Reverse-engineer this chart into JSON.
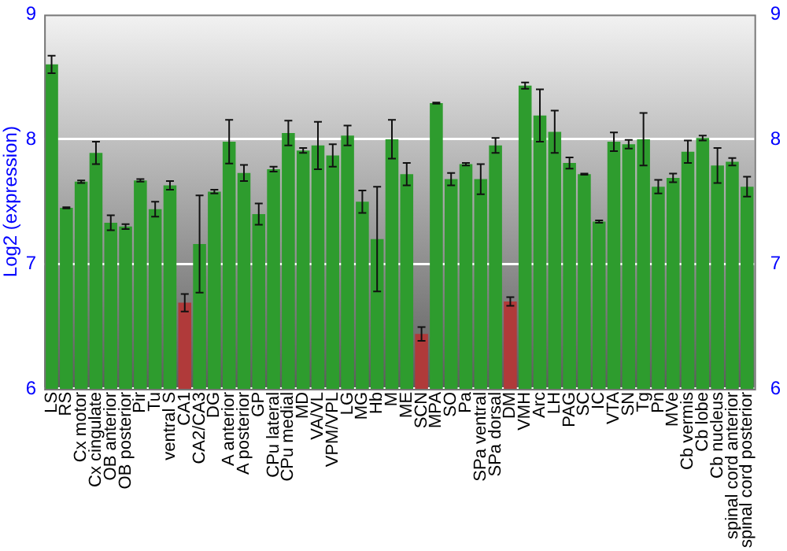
{
  "chart_data": {
    "type": "bar",
    "ylabel": "Log2 (expression)",
    "categories": [
      "LS",
      "RS",
      "Cx motor",
      "Cx cingulate",
      "OB anterior",
      "OB posterior",
      "Pir",
      "Tu",
      "ventral S",
      "CA1",
      "CA2/CA3",
      "DG",
      "A anterior",
      "A posterior",
      "GP",
      "CPu lateral",
      "CPu medial",
      "MD",
      "VA/VL",
      "VPM/VPL",
      "LG",
      "MG",
      "Hb",
      "M",
      "ME",
      "SCN",
      "MPA",
      "SO",
      "Pa",
      "SPa ventral",
      "SPa dorsal",
      "DM",
      "VMH",
      "Arc",
      "LH",
      "PAG",
      "SC",
      "IC",
      "VTA",
      "SN",
      "Tg",
      "Pn",
      "MVe",
      "Cb vermis",
      "Cb lobe",
      "Cb nucleus",
      "spinal cord anterior",
      "spinal cord posterior"
    ],
    "values": [
      8.6,
      7.45,
      7.66,
      7.89,
      7.33,
      7.3,
      7.67,
      7.44,
      7.63,
      6.69,
      7.16,
      7.58,
      7.98,
      7.73,
      7.4,
      7.76,
      8.05,
      7.91,
      7.95,
      7.87,
      8.03,
      7.5,
      7.2,
      8.0,
      7.72,
      6.44,
      8.29,
      7.68,
      7.8,
      7.68,
      7.95,
      6.7,
      8.43,
      8.19,
      8.06,
      7.81,
      7.72,
      7.34,
      7.98,
      7.96,
      8.0,
      7.62,
      7.69,
      7.9,
      8.01,
      7.79,
      7.82,
      7.62
    ],
    "errors": [
      0.07,
      0.005,
      0.01,
      0.09,
      0.06,
      0.02,
      0.01,
      0.06,
      0.035,
      0.07,
      0.39,
      0.015,
      0.175,
      0.065,
      0.085,
      0.02,
      0.1,
      0.02,
      0.19,
      0.09,
      0.08,
      0.09,
      0.42,
      0.155,
      0.09,
      0.055,
      0.005,
      0.05,
      0.01,
      0.12,
      0.06,
      0.035,
      0.025,
      0.21,
      0.17,
      0.045,
      0.005,
      0.01,
      0.075,
      0.035,
      0.21,
      0.055,
      0.035,
      0.09,
      0.02,
      0.14,
      0.03,
      0.08
    ],
    "colors": [
      "#2e9c2e",
      "#2e9c2e",
      "#2e9c2e",
      "#2e9c2e",
      "#2e9c2e",
      "#2e9c2e",
      "#2e9c2e",
      "#2e9c2e",
      "#2e9c2e",
      "#b03a3a",
      "#2e9c2e",
      "#2e9c2e",
      "#2e9c2e",
      "#2e9c2e",
      "#2e9c2e",
      "#2e9c2e",
      "#2e9c2e",
      "#2e9c2e",
      "#2e9c2e",
      "#2e9c2e",
      "#2e9c2e",
      "#2e9c2e",
      "#2e9c2e",
      "#2e9c2e",
      "#2e9c2e",
      "#b03a3a",
      "#2e9c2e",
      "#2e9c2e",
      "#2e9c2e",
      "#2e9c2e",
      "#2e9c2e",
      "#b03a3a",
      "#2e9c2e",
      "#2e9c2e",
      "#2e9c2e",
      "#2e9c2e",
      "#2e9c2e",
      "#2e9c2e",
      "#2e9c2e",
      "#2e9c2e",
      "#2e9c2e",
      "#2e9c2e",
      "#2e9c2e",
      "#2e9c2e",
      "#2e9c2e",
      "#2e9c2e",
      "#2e9c2e",
      "#2e9c2e"
    ],
    "ylim": [
      6,
      9
    ],
    "yticks": [
      6,
      7,
      8,
      9
    ],
    "y2lim": [
      6,
      9
    ],
    "y2ticks": [
      6,
      7,
      8,
      9
    ],
    "grid": "y",
    "legend": false
  }
}
